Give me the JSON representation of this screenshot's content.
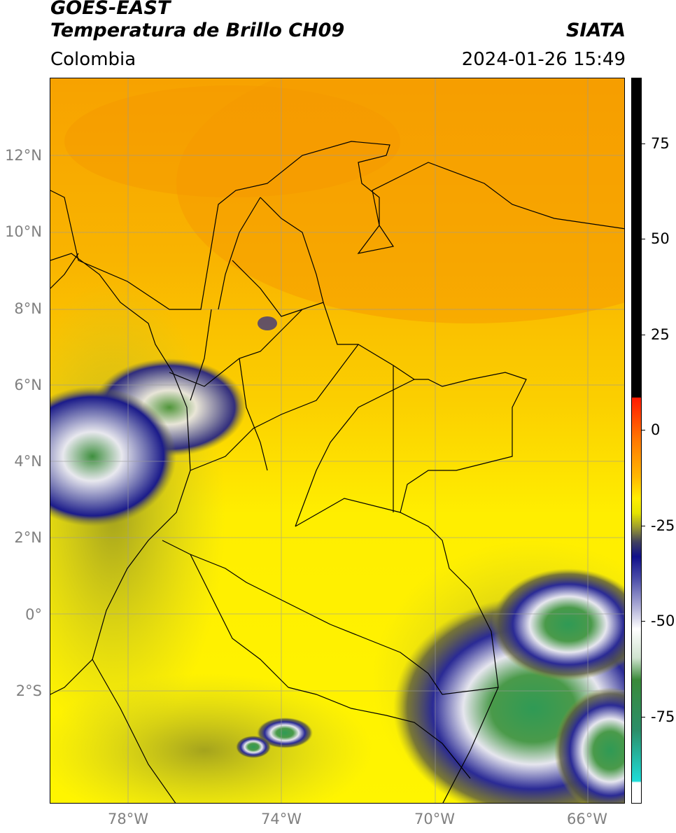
{
  "header": {
    "line1": "GOES-EAST",
    "line2": "Temperatura de Brillo CH09",
    "brand": "SIATA",
    "region": "Colombia",
    "datetime": "2024-01-26 15:49"
  },
  "map": {
    "lat_labels": [
      "12°N",
      "10°N",
      "8°N",
      "6°N",
      "4°N",
      "2°N",
      "0°",
      "2°S"
    ],
    "lon_labels": [
      "78°W",
      "74°W",
      "70°W",
      "66°W"
    ],
    "colors": {
      "warm": "#f6a000",
      "mid": "#ffef00",
      "cloud_edge": "#1a1a8c",
      "cloud_core": "#f2f2f2",
      "cold_core": "#3f9a3f",
      "border": "#000000"
    }
  },
  "colorbar": {
    "labels": [
      "75",
      "50",
      "25",
      "0",
      "-25",
      "-50",
      "-75"
    ],
    "range": [
      -95,
      95
    ]
  }
}
